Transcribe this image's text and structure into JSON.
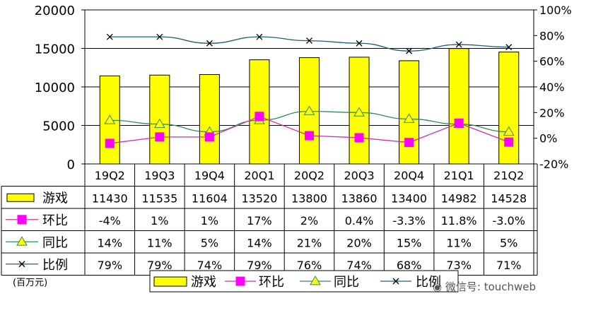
{
  "chart_data": {
    "type": "bar+line",
    "categories": [
      "19Q2",
      "19Q3",
      "19Q4",
      "20Q1",
      "20Q2",
      "20Q3",
      "20Q4",
      "21Q1",
      "21Q2"
    ],
    "left_axis": {
      "ylim": [
        0,
        20000
      ],
      "ticks": [
        "0",
        "5000",
        "10000",
        "15000",
        "20000"
      ]
    },
    "right_axis": {
      "ylim": [
        -20,
        100
      ],
      "ticks": [
        "-20%",
        "0%",
        "20%",
        "40%",
        "60%",
        "80%",
        "100%"
      ]
    },
    "series": [
      {
        "name": "游戏",
        "kind": "bar",
        "axis": "left",
        "color": "#ffff00",
        "values": [
          11430,
          11535,
          11604,
          13520,
          13800,
          13860,
          13400,
          14982,
          14528
        ],
        "labels": [
          "11430",
          "11535",
          "11604",
          "13520",
          "13800",
          "13860",
          "13400",
          "14982",
          "14528"
        ]
      },
      {
        "name": "环比",
        "kind": "line",
        "axis": "right",
        "color": "#cc33aa",
        "marker": "square",
        "marker_color": "#ff00ff",
        "values": [
          -4,
          1,
          1,
          17,
          2,
          0.4,
          -3.3,
          11.8,
          -3.0
        ],
        "labels": [
          "-4%",
          "1%",
          "1%",
          "17%",
          "2%",
          "0.4%",
          "-3.3%",
          "11.8%",
          "-3.0%"
        ]
      },
      {
        "name": "同比",
        "kind": "line",
        "axis": "right",
        "color": "#2e8b57",
        "marker": "triangle",
        "marker_color": "#ffff00",
        "values": [
          14,
          11,
          5,
          14,
          21,
          20,
          15,
          11,
          5
        ],
        "labels": [
          "14%",
          "11%",
          "5%",
          "14%",
          "21%",
          "20%",
          "15%",
          "11%",
          "5%"
        ]
      },
      {
        "name": "比例",
        "kind": "line",
        "axis": "right",
        "color": "#1f5f7a",
        "marker": "x",
        "marker_color": "#000000",
        "values": [
          79,
          79,
          74,
          79,
          76,
          74,
          68,
          73,
          71
        ],
        "labels": [
          "79%",
          "79%",
          "74%",
          "79%",
          "76%",
          "74%",
          "68%",
          "73%",
          "71%"
        ]
      }
    ],
    "unit_label": "(百万元)",
    "legend_position": "bottom"
  },
  "watermark": "微信号: touchweb"
}
